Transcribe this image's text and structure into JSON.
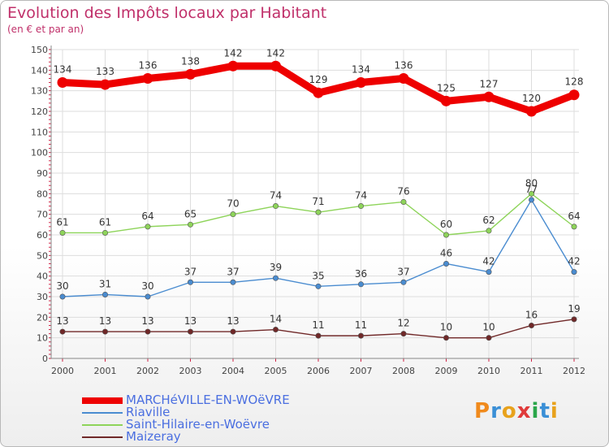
{
  "header": {
    "title": "Evolution des Impôts locaux par Habitant",
    "subtitle": "(en € et par an)"
  },
  "logo": {
    "text": "Proxiti",
    "colors": [
      "#f08a1c",
      "#3a8fd6",
      "#e8a21c",
      "#e03a3a",
      "#2aa64a",
      "#3a8fd6",
      "#e8a21c"
    ]
  },
  "chart_data": {
    "type": "line",
    "title": "Evolution des Impôts locaux par Habitant",
    "subtitle": "(en € et par an)",
    "xlabel": "",
    "ylabel": "",
    "ylim": [
      0,
      150
    ],
    "yticks": [
      0,
      10,
      20,
      30,
      40,
      50,
      60,
      70,
      80,
      90,
      100,
      110,
      120,
      130,
      140,
      150
    ],
    "grid": true,
    "legend_position": "bottom-left",
    "categories": [
      "2000",
      "2001",
      "2002",
      "2003",
      "2004",
      "2005",
      "2006",
      "2007",
      "2008",
      "2009",
      "2010",
      "2011",
      "2012"
    ],
    "series": [
      {
        "name": "MARCHéVILLE-EN-WOëVRE",
        "color": "#ee0000",
        "emphasis": "thick",
        "values": [
          134,
          133,
          136,
          138,
          142,
          142,
          129,
          134,
          136,
          125,
          127,
          120,
          128
        ]
      },
      {
        "name": "Riaville",
        "color": "#4a8cd0",
        "emphasis": "thin",
        "values": [
          30,
          31,
          30,
          37,
          37,
          39,
          35,
          36,
          37,
          46,
          42,
          77,
          42
        ]
      },
      {
        "name": "Saint-Hilaire-en-Woëvre",
        "color": "#8ed45a",
        "emphasis": "thin",
        "values": [
          61,
          61,
          64,
          65,
          70,
          74,
          71,
          74,
          76,
          60,
          62,
          80,
          64
        ]
      },
      {
        "name": "Maizeray",
        "color": "#702828",
        "emphasis": "thin",
        "values": [
          13,
          13,
          13,
          13,
          13,
          14,
          11,
          11,
          12,
          10,
          10,
          16,
          19
        ]
      }
    ],
    "data_labels": {
      "MARCHéVILLE-EN-WOëVRE": [
        "134",
        "133",
        "136",
        "138",
        "142",
        "142",
        "129",
        "134",
        "136",
        "125",
        "127",
        "120",
        "128"
      ],
      "Riaville": [
        "30",
        "31",
        "30",
        "37",
        "37",
        "39",
        "35",
        "36",
        "37",
        "46",
        "42",
        "77",
        "42"
      ],
      "Saint-Hilaire-en-Woëvre": [
        "61",
        "61",
        "64",
        "65",
        "70",
        "74",
        "71",
        "74",
        "76",
        "60",
        "62",
        "80",
        "64"
      ],
      "Maizeray": [
        "13",
        "13",
        "13",
        "13",
        "13",
        "14",
        "11",
        "11",
        "12",
        "10",
        "10",
        "16",
        "19"
      ]
    }
  }
}
